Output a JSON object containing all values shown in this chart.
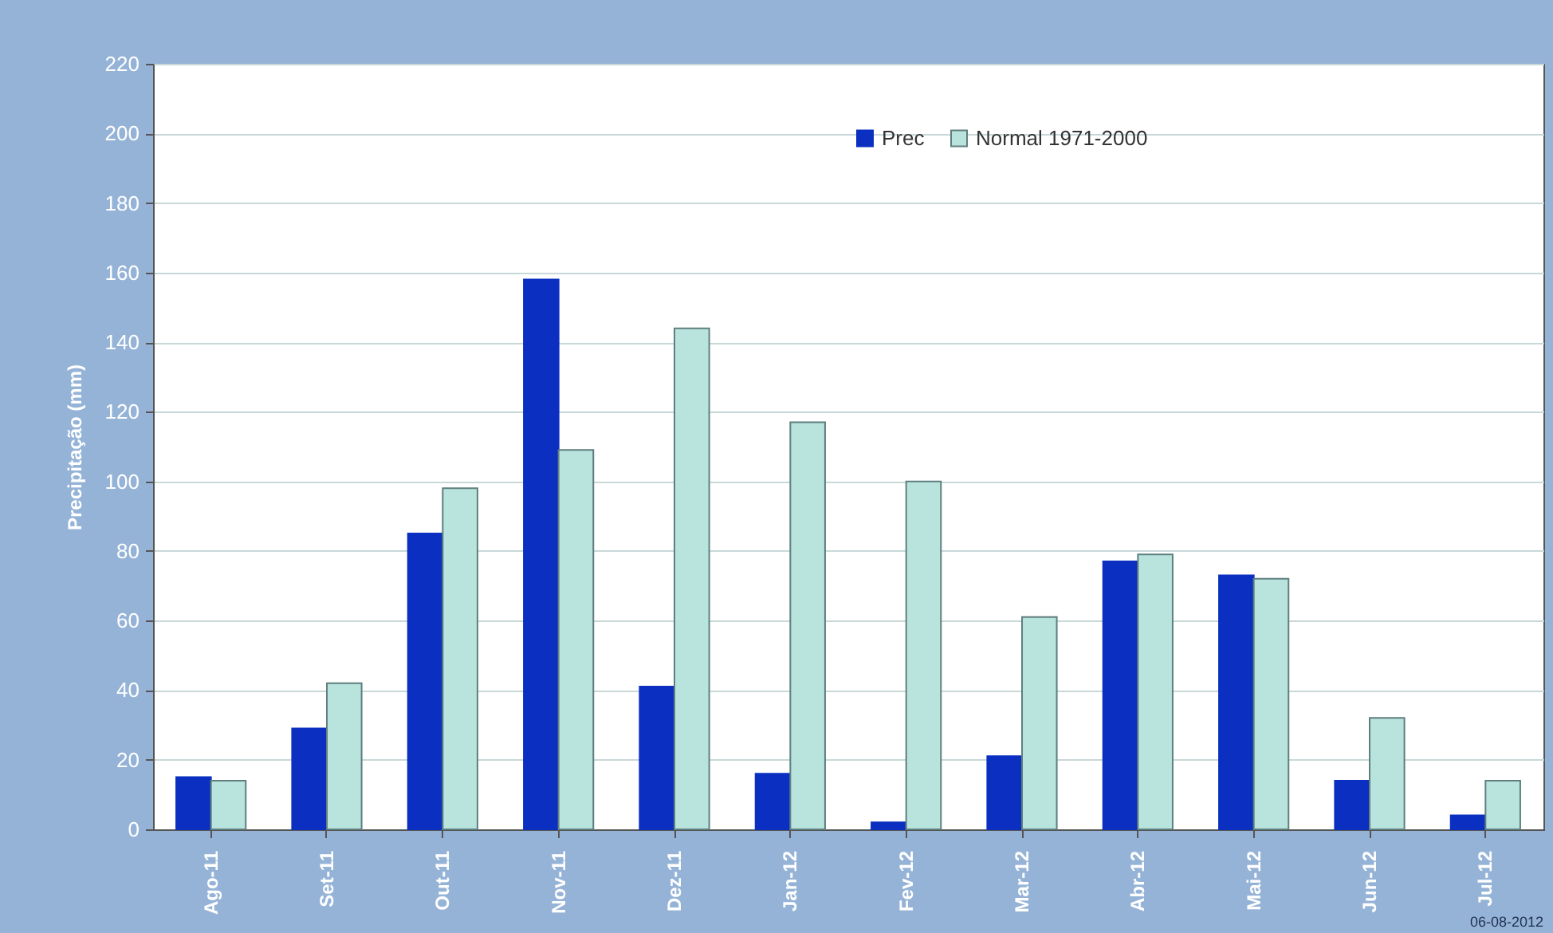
{
  "chart_data": {
    "type": "bar",
    "ylabel": "Precipitação (mm)",
    "categories": [
      "Ago-11",
      "Set-11",
      "Out-11",
      "Nov-11",
      "Dez-11",
      "Jan-12",
      "Fev-12",
      "Mar-12",
      "Abr-12",
      "Mai-12",
      "Jun-12",
      "Jul-12"
    ],
    "series": [
      {
        "name": "Prec",
        "color": "#0b2fc0",
        "values": [
          15,
          29,
          85,
          158,
          41,
          16,
          2,
          21,
          77,
          73,
          14,
          4
        ]
      },
      {
        "name": "Normal 1971-2000",
        "color": "#b9e3dd",
        "values": [
          14,
          42,
          98,
          109,
          144,
          117,
          100,
          61,
          79,
          72,
          32,
          14
        ]
      }
    ],
    "ylim": [
      0,
      220
    ],
    "yticks": [
      0,
      20,
      40,
      60,
      80,
      100,
      120,
      140,
      160,
      180,
      200,
      220
    ],
    "grid": "y",
    "legend": "top",
    "annotations": [
      "06-08-2012"
    ]
  }
}
